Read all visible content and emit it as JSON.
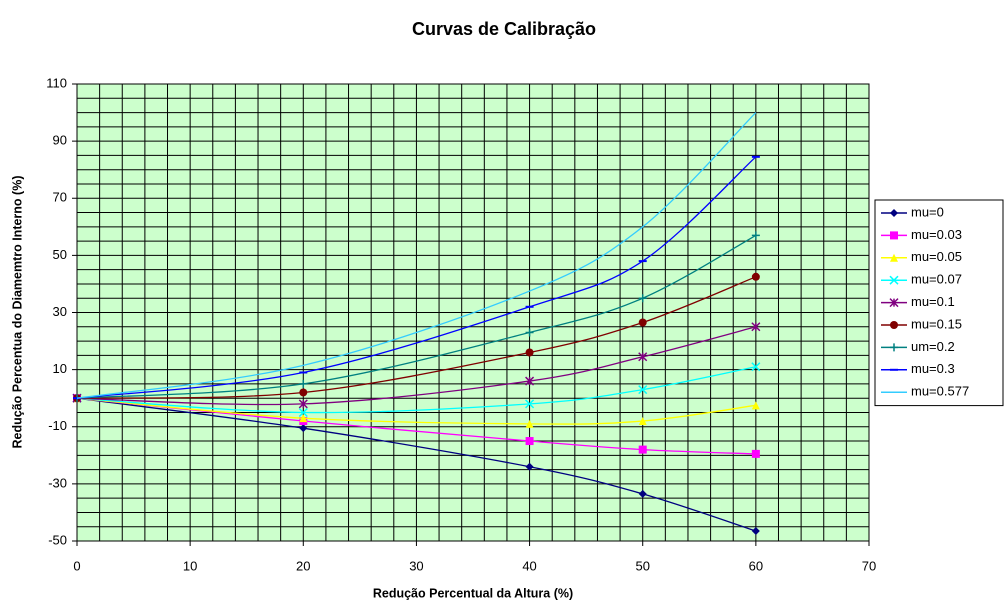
{
  "chart_data": {
    "type": "line",
    "title": "Curvas de Calibração",
    "xlabel": "Redução Percentual da Altura (%)",
    "ylabel": "Redução Percentua do Diamemtro Interno (%)",
    "x": [
      0,
      20,
      40,
      50,
      60
    ],
    "xlim": [
      0,
      70
    ],
    "xticks": [
      0,
      10,
      20,
      30,
      40,
      50,
      60,
      70
    ],
    "ylim": [
      -50,
      110
    ],
    "yticks": [
      -50,
      -30,
      -10,
      10,
      30,
      50,
      70,
      90,
      110
    ],
    "grid": {
      "x_step": 2,
      "y_step": 5
    },
    "background": "#ccffcc",
    "smooth": true,
    "legend": "right",
    "series": [
      {
        "name": "mu=0",
        "color": "#000080",
        "marker": "diamond",
        "values": [
          0,
          -10.5,
          -24,
          -33.5,
          -46.5
        ]
      },
      {
        "name": "mu=0.03",
        "color": "#ff00ff",
        "marker": "square",
        "values": [
          0,
          -8,
          -15,
          -18,
          -19.5
        ]
      },
      {
        "name": "mu=0.05",
        "color": "#ffff00",
        "marker": "triangle",
        "values": [
          0,
          -7,
          -9,
          -8,
          -2.5
        ]
      },
      {
        "name": "mu=0.07",
        "color": "#00ffff",
        "marker": "x",
        "values": [
          0,
          -5,
          -2,
          3,
          11
        ]
      },
      {
        "name": "mu=0.1",
        "color": "#800080",
        "marker": "star",
        "values": [
          0,
          -2,
          6,
          14.5,
          25
        ]
      },
      {
        "name": "mu=0.15",
        "color": "#800000",
        "marker": "circle",
        "values": [
          0,
          2,
          16,
          26.5,
          42.5
        ]
      },
      {
        "name": "um=0.2",
        "color": "#008080",
        "marker": "plus",
        "values": [
          0,
          5,
          23,
          35,
          57
        ]
      },
      {
        "name": "mu=0.3",
        "color": "#0000ff",
        "marker": "dash",
        "values": [
          0,
          9,
          32,
          48,
          84.5
        ]
      },
      {
        "name": "mu=0.577",
        "color": "#33ccff",
        "marker": "none",
        "values": [
          0,
          11.5,
          37.5,
          60,
          100
        ]
      }
    ]
  }
}
